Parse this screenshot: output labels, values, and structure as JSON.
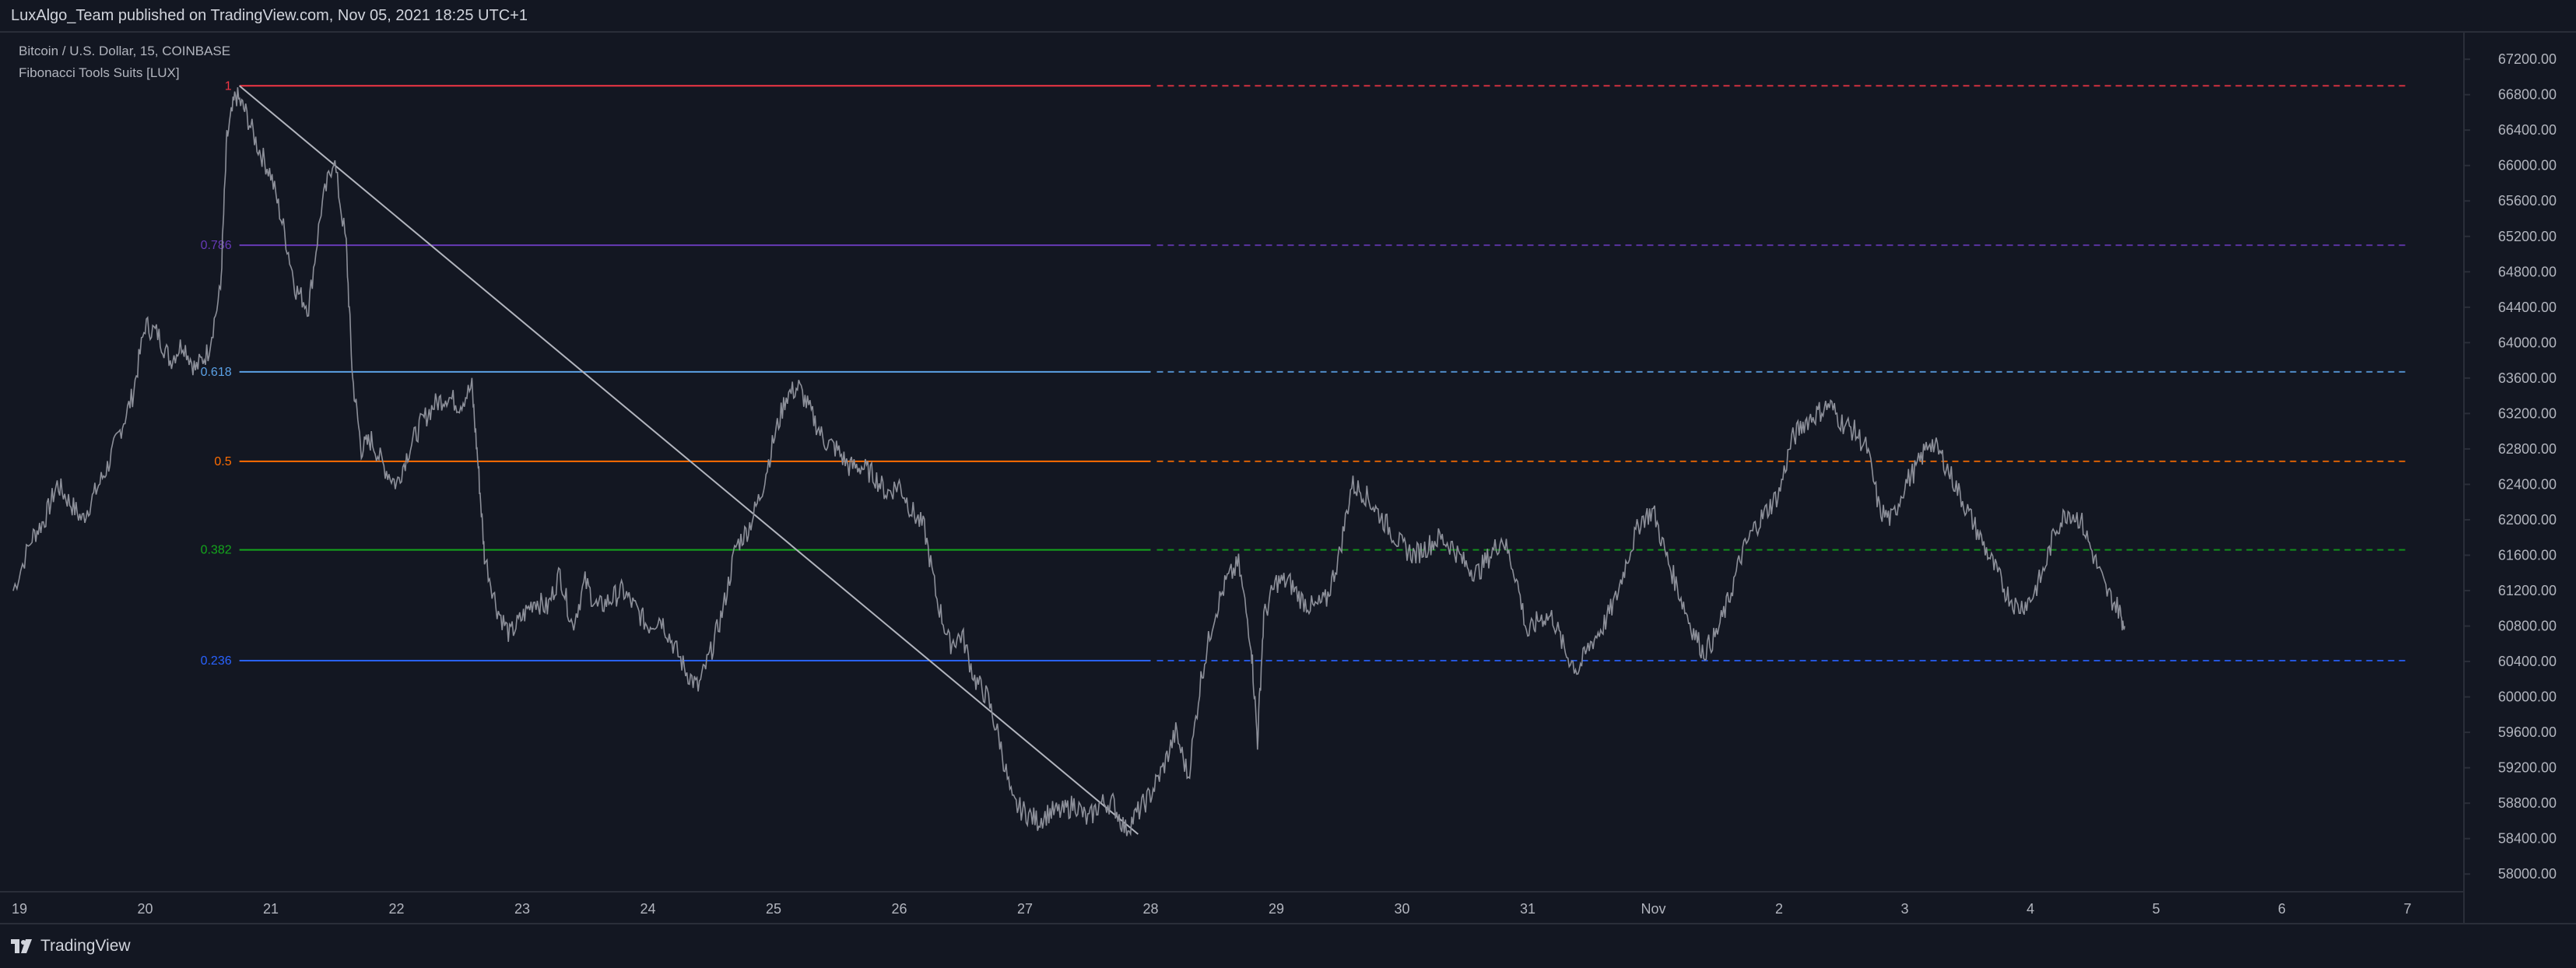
{
  "header": {
    "published_line": "LuxAlgo_Team published on TradingView.com, Nov 05, 2021 18:25 UTC+1"
  },
  "legend": {
    "symbol_line": "Bitcoin / U.S. Dollar, 15, COINBASE",
    "indicator_line": "Fibonacci Tools Suits [LUX]"
  },
  "footer": {
    "brand": "TradingView"
  },
  "colors": {
    "background": "#131722",
    "price_line": "#8c8f99",
    "trend_line": "#b2b5be",
    "fib_1": "#f23645",
    "fib_0786": "#673ab7",
    "fib_0618": "#5ba1e6",
    "fib_05": "#ff6d00",
    "fib_0382": "#14a51c",
    "fib_0236": "#2962ff"
  },
  "chart_data": {
    "type": "line",
    "title": "Bitcoin / U.S. Dollar, 15, COINBASE",
    "xlabel": "",
    "ylabel": "",
    "x_tick_labels": [
      "19",
      "20",
      "21",
      "22",
      "23",
      "24",
      "25",
      "26",
      "27",
      "28",
      "29",
      "30",
      "31",
      "Nov",
      "2",
      "3",
      "4",
      "5",
      "6",
      "7"
    ],
    "x_range_days": [
      18.95,
      38.5
    ],
    "y_range": [
      57800,
      67500
    ],
    "y_tick_labels": [
      "67200.00",
      "66800.00",
      "66400.00",
      "66000.00",
      "65600.00",
      "65200.00",
      "64800.00",
      "64400.00",
      "64000.00",
      "63600.00",
      "63200.00",
      "62800.00",
      "62400.00",
      "62000.00",
      "61600.00",
      "61200.00",
      "60800.00",
      "60400.00",
      "60000.00",
      "59600.00",
      "59200.00",
      "58800.00",
      "58400.00",
      "58000.00"
    ],
    "y_ticks": [
      67200,
      66800,
      66400,
      66000,
      65600,
      65200,
      64800,
      64400,
      64000,
      63600,
      63200,
      62800,
      62400,
      62000,
      61600,
      61200,
      60800,
      60400,
      60000,
      59600,
      59200,
      58800,
      58400,
      58000
    ],
    "series": [
      {
        "x": [
          18.95,
          19.1,
          19.2,
          19.3,
          19.4,
          19.5,
          19.6,
          19.7,
          19.8,
          19.9,
          20.0,
          20.1,
          20.2,
          20.3,
          20.4,
          20.5,
          20.6,
          20.65,
          20.72,
          20.8,
          20.9,
          21.0,
          21.1,
          21.2,
          21.3,
          21.4,
          21.5,
          21.6,
          21.65,
          21.72,
          21.8,
          21.9,
          22.0,
          22.1,
          22.2,
          22.3,
          22.4,
          22.5,
          22.6,
          22.65,
          22.7,
          22.8,
          22.9,
          23.0,
          23.1,
          23.2,
          23.3,
          23.4,
          23.5,
          23.6,
          23.7,
          23.8,
          23.9,
          24.0,
          24.1,
          24.2,
          24.3,
          24.4,
          24.5,
          24.6,
          24.7,
          24.8,
          24.9,
          25.0,
          25.1,
          25.2,
          25.3,
          25.4,
          25.5,
          25.6,
          25.7,
          25.8,
          25.9,
          26.0,
          26.1,
          26.2,
          26.3,
          26.4,
          26.5,
          26.6,
          26.7,
          26.8,
          26.9,
          27.0,
          27.1,
          27.2,
          27.3,
          27.4,
          27.5,
          27.6,
          27.7,
          27.8,
          27.9,
          28.0,
          28.1,
          28.2,
          28.3,
          28.4,
          28.5,
          28.6,
          28.7,
          28.8,
          28.85,
          28.9,
          29.0,
          29.1,
          29.2,
          29.3,
          29.4,
          29.5,
          29.6,
          29.7,
          29.8,
          29.9,
          30.0,
          30.1,
          30.2,
          30.3,
          30.4,
          30.5,
          30.6,
          30.7,
          30.8,
          30.9,
          31.0,
          31.1,
          31.2,
          31.3,
          31.4,
          31.5,
          31.6,
          31.7,
          31.8,
          31.9,
          32.0,
          32.1,
          32.2,
          32.3,
          32.4,
          32.5,
          32.6,
          32.7,
          32.8,
          32.9,
          33.0,
          33.1,
          33.2,
          33.3,
          33.4,
          33.5,
          33.6,
          33.7,
          33.8,
          33.9,
          34.0,
          34.1,
          34.2,
          34.3,
          34.4,
          34.5,
          34.6,
          34.7,
          34.8,
          34.9,
          35.0,
          35.1,
          35.2,
          35.3,
          35.4,
          35.5,
          35.6,
          35.7,
          35.75
        ],
        "values": [
          61200,
          61800,
          62000,
          62400,
          62200,
          62000,
          62300,
          62600,
          63000,
          63400,
          64200,
          64100,
          63800,
          64000,
          63700,
          63900,
          64600,
          66300,
          66800,
          66600,
          66200,
          65900,
          65300,
          64600,
          64400,
          65500,
          66100,
          65100,
          63600,
          62800,
          62900,
          62600,
          62400,
          62800,
          63100,
          63300,
          63400,
          63300,
          63500,
          62600,
          61600,
          61000,
          60700,
          60900,
          61100,
          61000,
          61400,
          60800,
          61300,
          61000,
          61100,
          61200,
          61000,
          60800,
          60900,
          60600,
          60300,
          60100,
          60500,
          61000,
          61700,
          61900,
          62300,
          62900,
          63400,
          63500,
          63200,
          62900,
          62800,
          62600,
          62600,
          62500,
          62300,
          62400,
          62100,
          61900,
          61100,
          60600,
          60700,
          60200,
          60000,
          59500,
          58800,
          58700,
          58600,
          58700,
          58700,
          58800,
          58600,
          58800,
          58800,
          58500,
          58700,
          58900,
          59200,
          59600,
          59100,
          60200,
          60900,
          61300,
          61500,
          60600,
          59500,
          60900,
          61300,
          61300,
          61100,
          61000,
          61100,
          61600,
          62400,
          62300,
          62100,
          61900,
          61700,
          61600,
          61700,
          61800,
          61700,
          61500,
          61400,
          61600,
          61800,
          61400,
          60700,
          60900,
          60900,
          60500,
          60300,
          60600,
          60800,
          61100,
          61600,
          62000,
          62100,
          61600,
          61200,
          60800,
          60500,
          60700,
          61100,
          61600,
          61900,
          62100,
          62300,
          62900,
          63100,
          63200,
          63300,
          63100,
          63000,
          62800,
          62100,
          62000,
          62400,
          62600,
          62900,
          62700,
          62400,
          62100,
          61800,
          61500,
          61200,
          61000,
          61100,
          61400,
          61900,
          62100,
          62000,
          61600,
          61200,
          61000,
          60800
        ]
      }
    ],
    "fibonacci": {
      "line_start_x": 20.75,
      "solid_end_x": 28.0,
      "dash_end_x": 38.0,
      "levels": [
        {
          "label": "1",
          "price": 66900,
          "color": "#f23645"
        },
        {
          "label": "0.786",
          "price": 65100,
          "color": "#673ab7"
        },
        {
          "label": "0.618",
          "price": 63670,
          "color": "#5ba1e6"
        },
        {
          "label": "0.5",
          "price": 62660,
          "color": "#ff6d00"
        },
        {
          "label": "0.382",
          "price": 61660,
          "color": "#14a51c"
        },
        {
          "label": "0.236",
          "price": 60410,
          "color": "#2962ff"
        }
      ],
      "trend_line": {
        "from": {
          "x": 20.75,
          "y": 66900
        },
        "to": {
          "x": 27.9,
          "y": 58450
        }
      }
    },
    "grid": false,
    "legend_position": "top-left"
  }
}
